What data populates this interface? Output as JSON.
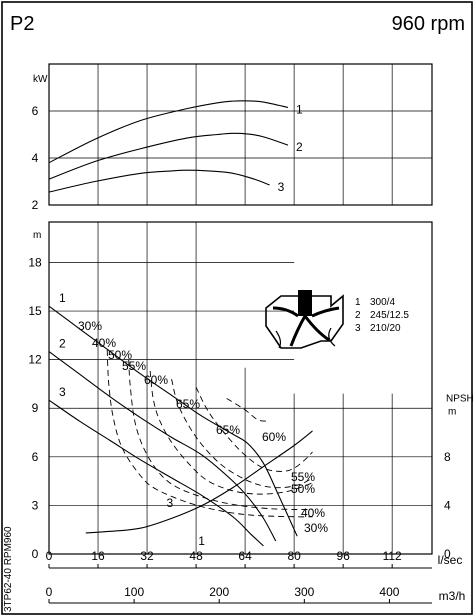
{
  "header": {
    "model": "P2",
    "speed": "960 rpm"
  },
  "side_label": "3TP62-40 RPM960",
  "chart_data": [
    {
      "type": "line",
      "panel": "power",
      "ylabel": "kW",
      "yticks": [
        "6",
        "4",
        "2"
      ],
      "ylim": [
        2,
        8
      ],
      "xlim": [
        0,
        125
      ],
      "series": [
        {
          "label": "1",
          "x": [
            0,
            15,
            30,
            45,
            55,
            60,
            65,
            70,
            78
          ],
          "y": [
            3.8,
            4.8,
            5.6,
            6.1,
            6.35,
            6.42,
            6.43,
            6.38,
            6.15
          ]
        },
        {
          "label": "2",
          "x": [
            0,
            15,
            30,
            45,
            55,
            60,
            65,
            70,
            78
          ],
          "y": [
            3.1,
            3.85,
            4.4,
            4.85,
            5.0,
            5.05,
            5.02,
            4.9,
            4.55
          ]
        },
        {
          "label": "3",
          "x": [
            0,
            15,
            30,
            40,
            45,
            52,
            60,
            67,
            72
          ],
          "y": [
            2.55,
            3.0,
            3.35,
            3.45,
            3.48,
            3.45,
            3.35,
            3.1,
            2.85
          ]
        }
      ]
    },
    {
      "type": "line",
      "panel": "head",
      "ylabel": "m",
      "yticks": [
        "18",
        "15",
        "12",
        "9",
        "6",
        "3",
        "0"
      ],
      "ylim": [
        0,
        20.5
      ],
      "xlim": [
        0,
        125
      ],
      "y2label": "NPSH",
      "y2unit": "m",
      "y2ticks": [
        "8",
        "4",
        "0"
      ],
      "series": [
        {
          "label": "1",
          "x": [
            0,
            10,
            20,
            30,
            40,
            50,
            60,
            65,
            70,
            75,
            81
          ],
          "y": [
            15.3,
            13.9,
            12.5,
            11.1,
            9.8,
            8.5,
            7.4,
            6.8,
            5.6,
            3.6,
            1.1
          ]
        },
        {
          "label": "2",
          "x": [
            0,
            10,
            20,
            30,
            40,
            50,
            60,
            65,
            70,
            74
          ],
          "y": [
            12.5,
            11.1,
            9.7,
            8.4,
            7.2,
            6.1,
            4.5,
            3.5,
            2.2,
            0.8
          ]
        },
        {
          "label": "3",
          "x": [
            0,
            10,
            20,
            30,
            40,
            50,
            60,
            66,
            70
          ],
          "y": [
            9.5,
            8.2,
            7.0,
            5.8,
            4.7,
            3.6,
            2.3,
            1.2,
            0.5
          ]
        }
      ],
      "npsh": {
        "x": [
          12,
          20,
          30,
          40,
          50,
          60,
          70,
          80,
          86
        ],
        "y": [
          1.3,
          1.4,
          1.6,
          2.2,
          3.0,
          4.1,
          5.4,
          6.7,
          7.6
        ]
      },
      "npsh_label": "3",
      "npsh_label2": "1",
      "efficiency": [
        {
          "label": "30%",
          "left": {
            "x": [
              19,
              19.5,
              21,
              24,
              30,
              35,
              45,
              55,
              66,
              80,
              86
            ],
            "y": [
              12.6,
              10.5,
              8.4,
              6.5,
              4.8,
              4.0,
              3.2,
              2.7,
              2.4,
              2.3,
              2.3
            ]
          }
        },
        {
          "label": "40%",
          "left": {
            "x": [
              26,
              26.5,
              28,
              31,
              36,
              42,
              52,
              62,
              72,
              80,
              86
            ],
            "y": [
              12.0,
              10.4,
              8.2,
              6.5,
              5.0,
              4.1,
              3.4,
              3.0,
              2.8,
              2.75,
              2.75
            ]
          }
        },
        {
          "label": "50%",
          "left": {
            "x": [
              33,
              34,
              36,
              40,
              46,
              52,
              60,
              68,
              76,
              82,
              86
            ],
            "y": [
              11.3,
              9.6,
              8.3,
              6.9,
              5.5,
              4.5,
              3.9,
              3.7,
              3.8,
              4.1,
              4.4
            ]
          }
        },
        {
          "label": "55%",
          "left": {
            "x": [
              40,
              42,
              46,
              51,
              57,
              64,
              70,
              76,
              82,
              86
            ],
            "y": [
              10.8,
              9.3,
              7.8,
              6.5,
              5.4,
              4.6,
              4.2,
              4.1,
              4.3,
              4.7
            ]
          }
        },
        {
          "label": "60%",
          "left": {
            "x": [
              48,
              52,
              58,
              64,
              70,
              76,
              80,
              84,
              86
            ],
            "y": [
              10.3,
              8.8,
              7.3,
              6.1,
              5.3,
              5.1,
              5.3,
              5.9,
              6.3
            ]
          }
        }
      ],
      "eff_labels": [
        "30%",
        "40%",
        "50%",
        "55%",
        "60%",
        "65%",
        "65%",
        "60%",
        "55%",
        "50%",
        "40%",
        "30%"
      ],
      "impeller_legend": [
        {
          "num": "1",
          "text": "300/4"
        },
        {
          "num": "2",
          "text": "245/12.5"
        },
        {
          "num": "3",
          "text": "210/20"
        }
      ]
    }
  ],
  "x_axis_lps": {
    "ticks": [
      "0",
      "16",
      "32",
      "48",
      "64",
      "80",
      "96",
      "112"
    ],
    "unit": "l/sec"
  },
  "x_axis_m3h": {
    "ticks": [
      "0",
      "100",
      "200",
      "300",
      "400"
    ],
    "unit": "m3/h"
  }
}
